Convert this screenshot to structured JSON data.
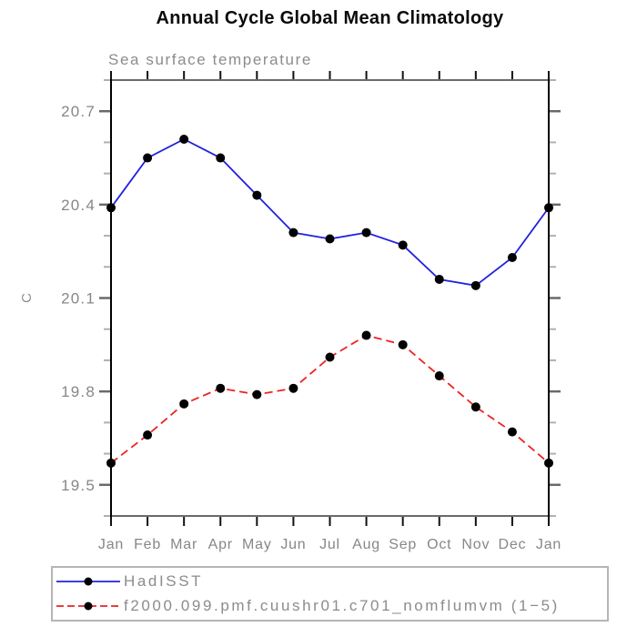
{
  "chart_data": {
    "type": "line",
    "title": "Annual Cycle Global Mean Climatology",
    "subtitle": "Sea surface temperature",
    "ylabel": "C",
    "xlabel": "",
    "categories": [
      "Jan",
      "Feb",
      "Mar",
      "Apr",
      "May",
      "Jun",
      "Jul",
      "Aug",
      "Sep",
      "Oct",
      "Nov",
      "Dec",
      "Jan"
    ],
    "series": [
      {
        "name": "HadISST",
        "color": "#2222dd",
        "dash": "solid",
        "marker": "circle",
        "values": [
          20.39,
          20.55,
          20.61,
          20.55,
          20.43,
          20.31,
          20.29,
          20.31,
          20.27,
          20.16,
          20.14,
          20.23,
          20.39
        ]
      },
      {
        "name": "f2000.099.pmf.cuushr01.c701_nomflumvm (1−5)",
        "color": "#ee2222",
        "dash": "dashed",
        "marker": "circle",
        "values": [
          19.57,
          19.66,
          19.76,
          19.81,
          19.79,
          19.81,
          19.91,
          19.98,
          19.95,
          19.85,
          19.75,
          19.67,
          19.57
        ]
      }
    ],
    "marker_color": "#000000",
    "ylim": [
      19.4,
      20.8
    ],
    "yticks_major": [
      19.5,
      19.8,
      20.1,
      20.4,
      20.7
    ],
    "ytick_minor_step": 0.1,
    "grid": false,
    "legend_position": "bottom-left",
    "frame_color_horizontal": "#6a6a6a",
    "frame_color_vertical": "#000000",
    "text_color": "#878787"
  }
}
